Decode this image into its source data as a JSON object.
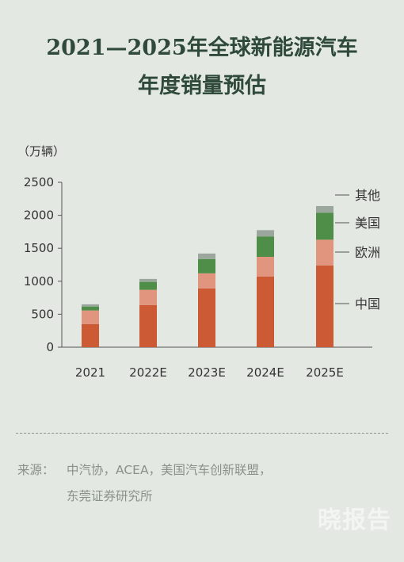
{
  "title_line1": "2021—2025年全球新能源汽车",
  "title_line2": "年度销量预估",
  "chart_data": {
    "type": "bar",
    "stacked": true,
    "unit_label": "（万辆）",
    "categories": [
      "2021",
      "2022E",
      "2023E",
      "2024E",
      "2025E"
    ],
    "series": [
      {
        "name": "中国",
        "color": "#cc5a34",
        "values": [
          352,
          640,
          890,
          1070,
          1240
        ]
      },
      {
        "name": "欧洲",
        "color": "#e1957e",
        "values": [
          205,
          230,
          230,
          300,
          390
        ]
      },
      {
        "name": "美国",
        "color": "#4e8e48",
        "values": [
          60,
          120,
          215,
          310,
          410
        ]
      },
      {
        "name": "其他",
        "color": "#9ba79d",
        "values": [
          33,
          45,
          85,
          95,
          100
        ]
      }
    ],
    "y_ticks": [
      0,
      500,
      1000,
      1500,
      2000,
      2500
    ],
    "ylim": [
      0,
      2500
    ],
    "legend_position": "right, inline with last bar"
  },
  "source_label": "来源：",
  "source_line1": "中汽协，ACEA，美国汽车创新联盟，",
  "source_line2": "东莞证券研究所",
  "watermark": "晓报告"
}
